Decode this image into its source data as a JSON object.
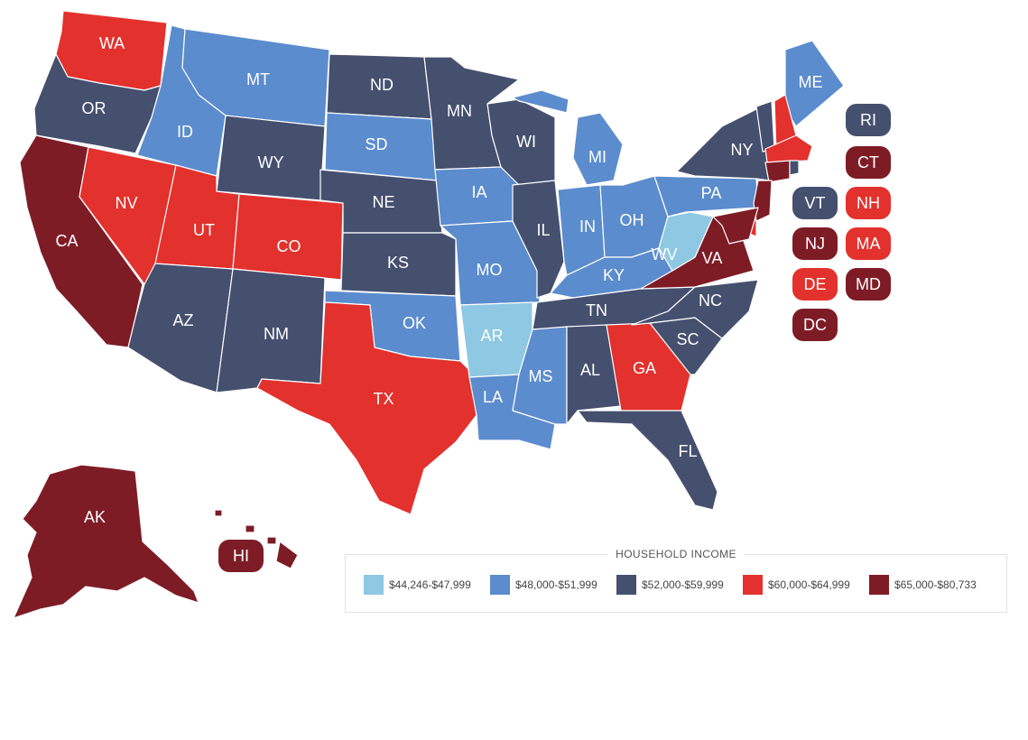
{
  "legend": {
    "title": "HOUSEHOLD INCOME",
    "bins": [
      {
        "label": "$44,246-$47,999",
        "color": "#8ec8e3"
      },
      {
        "label": "$48,000-$51,999",
        "color": "#5b8ccd"
      },
      {
        "label": "$52,000-$59,999",
        "color": "#45506f"
      },
      {
        "label": "$60,000-$64,999",
        "color": "#e3312d"
      },
      {
        "label": "$65,000-$80,733",
        "color": "#7e1c26"
      }
    ]
  },
  "states": [
    {
      "abbr": "WA",
      "bin": 3
    },
    {
      "abbr": "OR",
      "bin": 2
    },
    {
      "abbr": "CA",
      "bin": 4
    },
    {
      "abbr": "ID",
      "bin": 1
    },
    {
      "abbr": "NV",
      "bin": 3
    },
    {
      "abbr": "MT",
      "bin": 1
    },
    {
      "abbr": "WY",
      "bin": 2
    },
    {
      "abbr": "UT",
      "bin": 3
    },
    {
      "abbr": "AZ",
      "bin": 2
    },
    {
      "abbr": "CO",
      "bin": 3
    },
    {
      "abbr": "NM",
      "bin": 2
    },
    {
      "abbr": "ND",
      "bin": 2
    },
    {
      "abbr": "SD",
      "bin": 1
    },
    {
      "abbr": "NE",
      "bin": 2
    },
    {
      "abbr": "KS",
      "bin": 2
    },
    {
      "abbr": "OK",
      "bin": 1
    },
    {
      "abbr": "TX",
      "bin": 3
    },
    {
      "abbr": "MN",
      "bin": 2
    },
    {
      "abbr": "IA",
      "bin": 1
    },
    {
      "abbr": "MO",
      "bin": 1
    },
    {
      "abbr": "AR",
      "bin": 0
    },
    {
      "abbr": "LA",
      "bin": 1
    },
    {
      "abbr": "WI",
      "bin": 2
    },
    {
      "abbr": "IL",
      "bin": 2
    },
    {
      "abbr": "MI",
      "bin": 1
    },
    {
      "abbr": "IN",
      "bin": 1
    },
    {
      "abbr": "OH",
      "bin": 1
    },
    {
      "abbr": "KY",
      "bin": 1
    },
    {
      "abbr": "TN",
      "bin": 2
    },
    {
      "abbr": "MS",
      "bin": 1
    },
    {
      "abbr": "AL",
      "bin": 2
    },
    {
      "abbr": "GA",
      "bin": 3
    },
    {
      "abbr": "FL",
      "bin": 2
    },
    {
      "abbr": "SC",
      "bin": 2
    },
    {
      "abbr": "NC",
      "bin": 2
    },
    {
      "abbr": "VA",
      "bin": 4
    },
    {
      "abbr": "WV",
      "bin": 0
    },
    {
      "abbr": "PA",
      "bin": 1
    },
    {
      "abbr": "NY",
      "bin": 2
    },
    {
      "abbr": "ME",
      "bin": 1
    },
    {
      "abbr": "AK",
      "bin": 4
    },
    {
      "abbr": "HI",
      "bin": 4
    }
  ],
  "small_states": [
    {
      "abbr": "RI",
      "bin": 2
    },
    {
      "abbr": "CT",
      "bin": 4
    },
    {
      "abbr": "VT",
      "bin": 2
    },
    {
      "abbr": "NH",
      "bin": 3
    },
    {
      "abbr": "NJ",
      "bin": 4
    },
    {
      "abbr": "MA",
      "bin": 3
    },
    {
      "abbr": "DE",
      "bin": 3
    },
    {
      "abbr": "MD",
      "bin": 4
    },
    {
      "abbr": "DC",
      "bin": 4
    }
  ]
}
